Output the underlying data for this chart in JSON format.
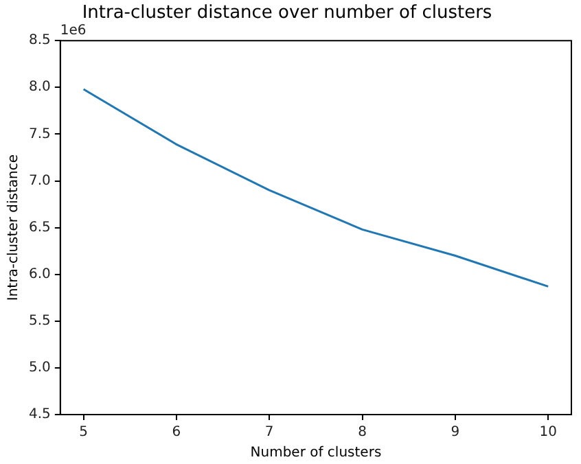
{
  "chart_data": {
    "type": "line",
    "title": "Intra-cluster distance over number of clusters",
    "xlabel": "Number of clusters",
    "ylabel": "Intra-cluster distance",
    "annotations": [
      "1e6"
    ],
    "x": [
      5,
      6,
      7,
      8,
      9,
      10
    ],
    "series": [
      {
        "color": "#1f77b4",
        "values": [
          7.98,
          7.39,
          6.9,
          6.48,
          6.2,
          5.87
        ]
      }
    ],
    "xlim": [
      4.75,
      10.25
    ],
    "xticks": [
      5,
      6,
      7,
      8,
      9,
      10
    ],
    "ylim": [
      4.5,
      8.5
    ],
    "yticks": [
      {
        "value": 4.5,
        "label": "4.5"
      },
      {
        "value": 5,
        "label": "5.0"
      },
      {
        "value": 5.5,
        "label": "5.5"
      },
      {
        "value": 6,
        "label": "6.0"
      },
      {
        "value": 6.5,
        "label": "6.5"
      },
      {
        "value": 7,
        "label": "7.0"
      },
      {
        "value": 7.5,
        "label": "7.5"
      },
      {
        "value": 8,
        "label": "8.0"
      },
      {
        "value": 8.5,
        "label": "8.5"
      }
    ],
    "grid": false,
    "legend": false,
    "marker": "none",
    "line_style": "solid"
  }
}
